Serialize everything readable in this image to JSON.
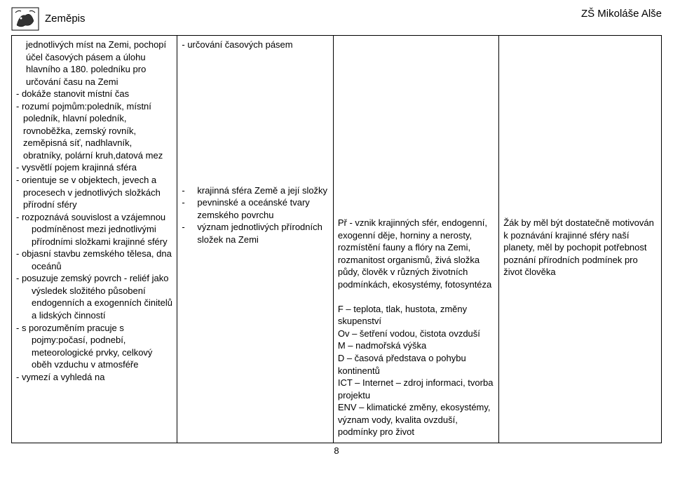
{
  "header": {
    "subject": "Zeměpis",
    "school": "ZŠ Mikoláše Alše"
  },
  "table": {
    "col1": {
      "lines": [
        "jednotlivých míst na Zemi, pochopí účel časových pásem a úlohu hlavního a 180. poledníku pro určování času na Zemi",
        "-   dokáže stanovit místní čas",
        "- rozumí pojmům:poledník, místní  poledník, hlavní poledník, rovnoběžka, zemský rovník, zeměpisná síť, nadhlavník, obratníky, polární kruh,datová mez",
        "-   vysvětlí  pojem krajinná sféra",
        "- orientuje se v objektech, jevech a  procesech v jednotlivých složkách přírodní sféry",
        "-   rozpoznává souvislost a vzájemnou podmíněnost mezi jednotlivými přírodními složkami krajinné sféry",
        "-   objasní stavbu zemského tělesa, dna oceánů",
        "-   posuzuje zemský povrch - reliéf jako výsledek složitého působení endogenních a exogenních činitelů a lidských činností",
        "-   s porozuměním pracuje s pojmy:počasí, podnebí, meteorologické prvky, celkový oběh vzduchu v atmosféře",
        "-   vymezí a vyhledá na"
      ]
    },
    "col2": {
      "block1": "- určování časových pásem",
      "block2_items": [
        "krajinná sféra Země a její složky",
        "pevninské a oceánské tvary zemského povrchu",
        "význam jednotlivých přírodních  složek na Zemi"
      ]
    },
    "col3": {
      "content": "Př - vznik krajinných sfér, endogenní, exogenní děje, horniny a nerosty, rozmístění fauny a flóry na Zemi, rozmanitost organismů, živá složka půdy, člověk v různých životních podmínkách, ekosystémy, fotosyntéza\n\nF – teplota, tlak, hustota, změny skupenství\nOv – šetření vodou, čistota ovzduší\nM – nadmořská výška\nD – časová představa o pohybu kontinentů\nICT – Internet – zdroj informaci, tvorba projektu\nENV – klimatické změny, ekosystémy, význam vody, kvalita ovzduší, podmínky pro život"
    },
    "col4": {
      "content": "Žák by měl být dostatečně motivován k poznávání krajinné sféry naší planety, měl by pochopit potřebnost poznání přírodních podmínek pro život člověka"
    }
  },
  "page_number": "8"
}
